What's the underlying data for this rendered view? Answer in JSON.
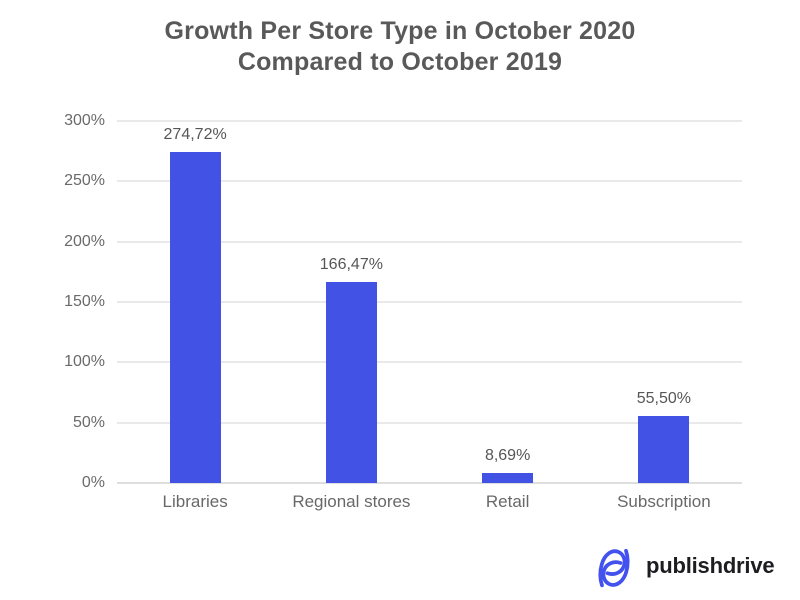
{
  "title": {
    "line1": "Growth Per Store Type in October 2020",
    "line2": "Compared to October 2019",
    "color": "#595959"
  },
  "chart_data": {
    "type": "bar",
    "title": "Growth Per Store Type in October 2020 Compared to October 2019",
    "categories": [
      "Libraries",
      "Regional stores",
      "Retail",
      "Subscription"
    ],
    "values": [
      274.72,
      166.47,
      8.69,
      55.5
    ],
    "value_labels": [
      "274,72%",
      "166,47%",
      "8,69%",
      "55,50%"
    ],
    "xlabel": "",
    "ylabel": "",
    "ylim": [
      0,
      300
    ],
    "y_ticks": [
      {
        "value": 300,
        "label": "300%"
      },
      {
        "value": 250,
        "label": "250%"
      },
      {
        "value": 200,
        "label": "200%"
      },
      {
        "value": 150,
        "label": "150%"
      },
      {
        "value": 100,
        "label": "100%"
      },
      {
        "value": 50,
        "label": "50%"
      },
      {
        "value": 0,
        "label": "0%"
      }
    ],
    "grid": true,
    "legend": "none",
    "bar_color": "#4252e4",
    "value_label_color": "#565656",
    "tick_color": "#6a6a6a",
    "category_label_color": "#686868"
  },
  "branding": {
    "logo_text": "publishdrive",
    "logo_icon": "publishdrive-logo",
    "logo_color": "#4352ee",
    "wordmark_color": "#1d1d21"
  }
}
